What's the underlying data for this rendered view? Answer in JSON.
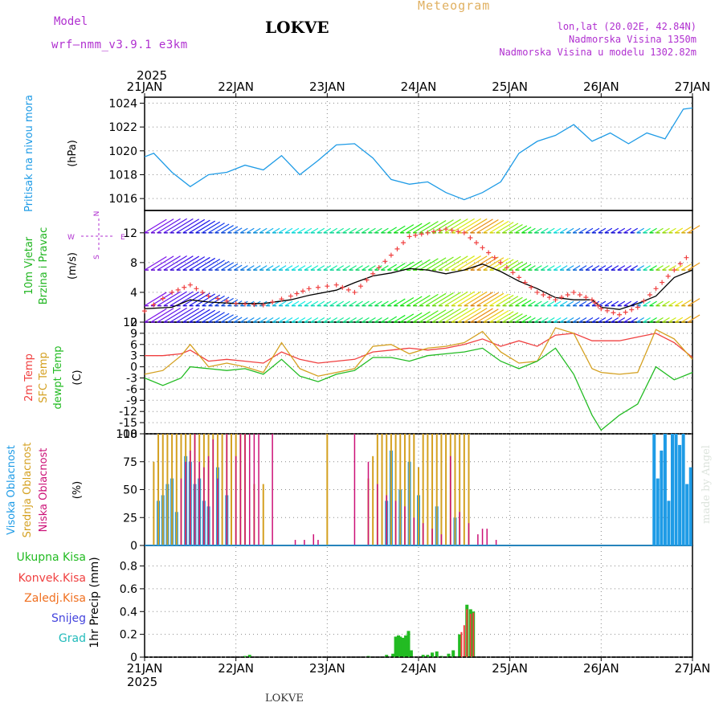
{
  "header": {
    "model_label": "Model",
    "model_name": "wrf—nmm_v3.9.1  e3km",
    "station": "LOKVE",
    "meteogram": "Meteogram",
    "lonlat": "lon,lat (20.02E, 42.84N)",
    "elevation": "Nadmorska Visina 1350m",
    "model_elevation": "Nadmorska Visina u modelu 1302.82m",
    "footer_station": "LOKVE",
    "watermark": "made by Angel",
    "year_top": "2025",
    "year_bottom": "2025"
  },
  "colors": {
    "pressure": "#1e9be6",
    "wind_title": "#1fb51f",
    "temp2m": "#f04040",
    "sfc": "#d4a020",
    "dewpt": "#22bb22",
    "high": "#1e9be6",
    "mid": "#d4a020",
    "low": "#cc1177",
    "dir": "#b030d0",
    "total": "#22bb22",
    "conv": "#f04040",
    "frz": "#f07020",
    "snow": "#4444dd",
    "grad": "#22bbbb",
    "grid": "#888888"
  },
  "chart_data": [
    {
      "type": "line",
      "name": "pressure",
      "title": "Pritisak na nivou mora",
      "ylabel": "(hPa)",
      "ylim": [
        1015,
        1024.5
      ],
      "yticks": [
        "1016",
        "1018",
        "1020",
        "1022",
        "1024"
      ],
      "xlabels": [
        "21JAN",
        "22JAN",
        "23JAN",
        "24JAN",
        "25JAN",
        "26JAN",
        "27JAN"
      ],
      "x_days": [
        0,
        0.1,
        0.3,
        0.5,
        0.7,
        0.9,
        1.1,
        1.3,
        1.5,
        1.7,
        1.9,
        2.1,
        2.3,
        2.5,
        2.7,
        2.9,
        3.1,
        3.3,
        3.5,
        3.7,
        3.9,
        4.1,
        4.3,
        4.5,
        4.7,
        4.9,
        5.1,
        5.3,
        5.5,
        5.7,
        5.9,
        6.0
      ],
      "values": [
        1019.5,
        1019.8,
        1018.2,
        1017.0,
        1018.0,
        1018.2,
        1018.8,
        1018.4,
        1019.6,
        1018.0,
        1019.2,
        1020.5,
        1020.6,
        1019.4,
        1017.6,
        1017.2,
        1017.4,
        1016.5,
        1015.9,
        1016.5,
        1017.4,
        1019.8,
        1020.8,
        1021.3,
        1022.2,
        1020.8,
        1021.5,
        1020.6,
        1021.5,
        1021.0,
        1023.5,
        1023.6
      ]
    },
    {
      "type": "line",
      "name": "wind",
      "title_a": "10m Vjetar",
      "title_b": "Brzina i Pravac",
      "ylabel": "(m/s)",
      "dir_legend": [
        "N",
        "W",
        "E",
        "S"
      ],
      "ylim": [
        0,
        15
      ],
      "yticks": [
        "0",
        "4",
        "8",
        "12"
      ],
      "x_days": [
        0,
        0.3,
        0.5,
        0.7,
        1.0,
        1.3,
        1.6,
        1.8,
        2.1,
        2.3,
        2.5,
        2.7,
        2.9,
        3.1,
        3.3,
        3.5,
        3.7,
        3.9,
        4.1,
        4.3,
        4.5,
        4.7,
        4.9,
        5.0,
        5.2,
        5.4,
        5.6,
        5.8,
        6.0
      ],
      "speed": [
        1.8,
        2.0,
        3.0,
        2.7,
        2.5,
        2.5,
        3.0,
        3.6,
        4.3,
        5.3,
        6.2,
        6.6,
        7.2,
        7.0,
        6.5,
        7.0,
        7.8,
        6.8,
        5.5,
        4.5,
        3.3,
        3.0,
        3.0,
        2.0,
        1.7,
        2.5,
        3.5,
        6.0,
        7.0
      ],
      "gust": [
        1.5,
        4.0,
        5.0,
        3.5,
        2.5,
        2.3,
        3.5,
        4.5,
        5.0,
        4.0,
        6.5,
        9.0,
        11.5,
        12.0,
        12.5,
        12.0,
        10.0,
        8.0,
        6.0,
        4.0,
        3.0,
        4.0,
        3.0,
        1.8,
        1.0,
        2.0,
        4.5,
        7.0,
        9.5
      ],
      "barb_levels": [
        12,
        7,
        2.2,
        0
      ]
    },
    {
      "type": "line",
      "name": "temperature",
      "titles": [
        "2m Temp",
        "SFC Temp",
        "dewpt Temp"
      ],
      "ylabel": "(C)",
      "ylim": [
        -18,
        12
      ],
      "yticks": [
        "12",
        "9",
        "6",
        "3",
        "0",
        "-3",
        "-6",
        "-9",
        "-12",
        "-15",
        "-18"
      ],
      "x_days": [
        0,
        0.2,
        0.4,
        0.5,
        0.7,
        0.9,
        1.1,
        1.3,
        1.5,
        1.7,
        1.9,
        2.1,
        2.3,
        2.5,
        2.7,
        2.9,
        3.1,
        3.3,
        3.5,
        3.7,
        3.9,
        4.1,
        4.3,
        4.5,
        4.7,
        4.9,
        5.0,
        5.2,
        5.4,
        5.6,
        5.8,
        6.0
      ],
      "temp2m": [
        3.0,
        3.0,
        3.5,
        4.5,
        1.5,
        2.0,
        1.5,
        1.0,
        4.0,
        2.0,
        1.0,
        1.5,
        2.0,
        4.0,
        4.5,
        5.0,
        4.5,
        5.0,
        6.0,
        7.5,
        5.5,
        7.0,
        5.5,
        8.5,
        9.0,
        7.0,
        7.0,
        7.0,
        8.0,
        9.0,
        6.5,
        2.5
      ],
      "sfc": [
        -2.0,
        -1.0,
        3.0,
        6.0,
        0.0,
        1.0,
        0.0,
        -1.5,
        6.5,
        -0.5,
        -2.5,
        -1.5,
        -0.5,
        5.5,
        6.0,
        3.5,
        5.0,
        5.5,
        6.5,
        9.5,
        4.0,
        1.0,
        1.5,
        10.5,
        9.0,
        -0.5,
        -1.5,
        -2.0,
        -1.5,
        10.0,
        7.5,
        2.0
      ],
      "dewpt": [
        -3.0,
        -5.0,
        -3.0,
        0.0,
        -0.5,
        -1.0,
        -0.5,
        -2.0,
        2.0,
        -2.5,
        -4.0,
        -2.0,
        -1.0,
        2.5,
        2.5,
        1.5,
        3.0,
        3.5,
        4.0,
        5.0,
        1.5,
        -0.5,
        1.5,
        5.0,
        -2.0,
        -13.0,
        -17.0,
        -13.0,
        -10.0,
        0.0,
        -3.5,
        -1.5
      ]
    },
    {
      "type": "bar",
      "name": "cloud",
      "titles": [
        "Visoka Oblacnost",
        "Srednja Oblacnost",
        "Niska Oblacnost"
      ],
      "ylabel": "(%)",
      "ylim": [
        0,
        100
      ],
      "yticks": [
        "0",
        "25",
        "50",
        "75",
        "100"
      ],
      "series": [
        {
          "name": "Visoka Oblacnost",
          "x_days": [
            0.15,
            0.2,
            0.25,
            0.3,
            0.35,
            0.45,
            0.5,
            0.55,
            0.6,
            0.65,
            0.7,
            0.8,
            0.9,
            2.65,
            2.7,
            2.8,
            2.9,
            3.0,
            3.2,
            3.4,
            5.58,
            5.62,
            5.66,
            5.7,
            5.74,
            5.78,
            5.82,
            5.86,
            5.9,
            5.94,
            5.98
          ],
          "values": [
            40,
            45,
            55,
            60,
            30,
            80,
            75,
            55,
            60,
            40,
            35,
            70,
            45,
            40,
            85,
            50,
            75,
            45,
            35,
            25,
            100,
            60,
            85,
            100,
            40,
            100,
            100,
            90,
            100,
            55,
            70
          ]
        },
        {
          "name": "Srednja Oblacnost",
          "x_days": [
            0.1,
            0.15,
            0.2,
            0.25,
            0.3,
            0.35,
            0.4,
            0.45,
            0.5,
            0.55,
            0.6,
            0.65,
            0.7,
            0.75,
            0.8,
            0.85,
            0.9,
            0.95,
            1.0,
            1.05,
            1.1,
            1.2,
            1.3,
            2.0,
            2.45,
            2.5,
            2.55,
            2.6,
            2.65,
            2.7,
            2.75,
            2.8,
            2.85,
            2.9,
            2.95,
            3.0,
            3.05,
            3.1,
            3.15,
            3.2,
            3.25,
            3.3,
            3.35,
            3.4,
            3.45,
            3.5,
            3.55
          ],
          "values": [
            75,
            100,
            100,
            100,
            100,
            100,
            100,
            100,
            100,
            100,
            100,
            100,
            100,
            100,
            100,
            100,
            100,
            100,
            100,
            100,
            100,
            55,
            55,
            100,
            60,
            80,
            100,
            100,
            100,
            100,
            100,
            100,
            100,
            100,
            100,
            70,
            100,
            100,
            100,
            100,
            100,
            100,
            100,
            100,
            100,
            100,
            100
          ]
        },
        {
          "name": "Niska Oblacnost",
          "x_days": [
            0.4,
            0.45,
            0.5,
            0.55,
            0.6,
            0.65,
            0.7,
            0.75,
            0.8,
            0.9,
            1.0,
            1.05,
            1.1,
            1.15,
            1.2,
            1.25,
            1.4,
            1.65,
            1.75,
            1.85,
            1.9,
            2.3,
            2.45,
            2.55,
            2.65,
            2.75,
            2.85,
            2.95,
            3.05,
            3.15,
            3.25,
            3.35,
            3.45,
            3.55,
            3.65,
            3.7,
            3.75,
            3.85
          ],
          "values": [
            60,
            75,
            85,
            100,
            75,
            70,
            80,
            95,
            60,
            100,
            80,
            100,
            100,
            100,
            100,
            100,
            100,
            5,
            5,
            10,
            5,
            100,
            75,
            55,
            45,
            40,
            35,
            25,
            20,
            15,
            10,
            80,
            30,
            20,
            10,
            15,
            15,
            5
          ]
        }
      ]
    },
    {
      "type": "bar",
      "name": "precip",
      "titles": [
        "Ukupna Kisa",
        "Konvek.Kisa",
        "Zaledj.Kisa",
        "Snijeg",
        "Grad"
      ],
      "ylabel": "1hr Precip (mm)",
      "ylim": [
        0,
        0.98
      ],
      "yticks": [
        "0",
        "0.2",
        "0.4",
        "0.6",
        "0.8"
      ],
      "xlabels": [
        "21JAN",
        "22JAN",
        "23JAN",
        "24JAN",
        "25JAN",
        "26JAN",
        "27JAN"
      ],
      "series": [
        {
          "name": "Ukupna Kisa",
          "x_days": [
            1.1,
            1.15,
            2.45,
            2.65,
            2.72,
            2.75,
            2.78,
            2.8,
            2.83,
            2.86,
            2.89,
            2.92,
            3.05,
            3.1,
            3.15,
            3.2,
            3.25,
            3.33,
            3.38,
            3.45,
            3.53,
            3.57,
            3.6
          ],
          "values": [
            0.01,
            0.02,
            0.01,
            0.02,
            0.03,
            0.18,
            0.19,
            0.18,
            0.17,
            0.19,
            0.23,
            0.06,
            0.02,
            0.02,
            0.04,
            0.05,
            0.01,
            0.03,
            0.06,
            0.2,
            0.46,
            0.42,
            0.4
          ]
        },
        {
          "name": "Konvek.Kisa",
          "x_days": [
            3.47,
            3.5,
            3.53,
            3.57,
            3.6
          ],
          "values": [
            0.22,
            0.28,
            0.42,
            0.38,
            0.39
          ]
        }
      ]
    }
  ]
}
